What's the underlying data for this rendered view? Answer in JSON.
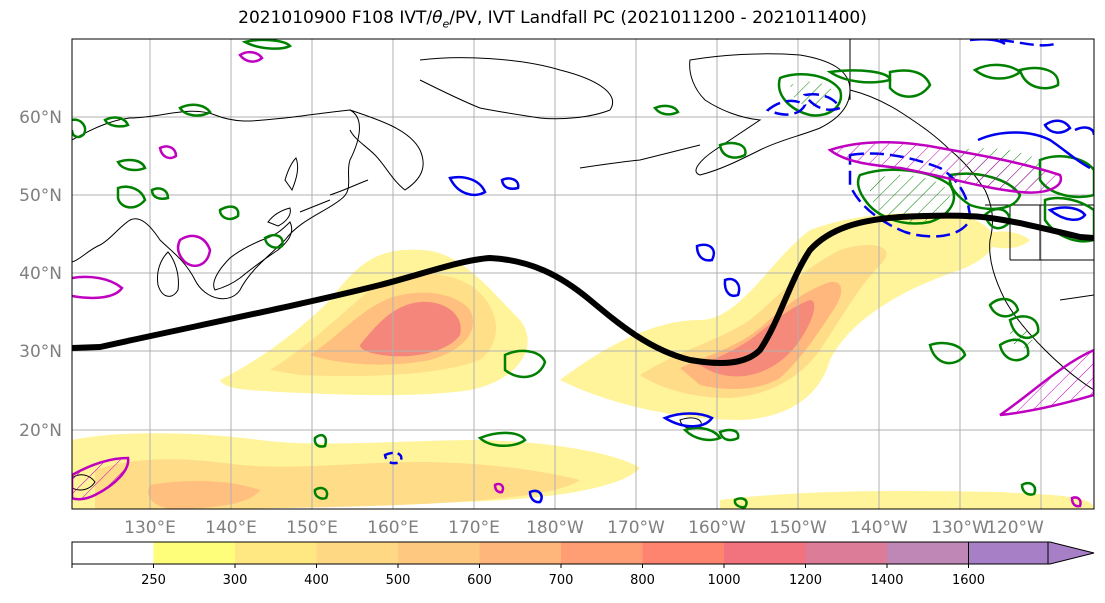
{
  "title": {
    "prefix": "2021010900 F108 IVT/",
    "theta": "θ",
    "theta_sub": "e",
    "suffix": "/PV, IVT Landfall PC (2021011200 - 2021011400)"
  },
  "lat_labels": [
    "60°N",
    "50°N",
    "40°N",
    "30°N",
    "20°N"
  ],
  "lat_values": [
    60,
    50,
    40,
    30,
    20
  ],
  "lon_labels": [
    "130°E",
    "140°E",
    "150°E",
    "160°E",
    "170°E",
    "180°W",
    "170°W",
    "160°W",
    "150°W",
    "140°W",
    "130°W",
    "120°W"
  ],
  "colorbar": {
    "levels": [
      "250",
      "300",
      "400",
      "500",
      "600",
      "700",
      "800",
      "1000",
      "1200",
      "1400",
      "1600"
    ],
    "colors": [
      "#ffffff",
      "#fffe7a",
      "#ffe781",
      "#ffd883",
      "#ffc881",
      "#ffb67b",
      "#ff9d74",
      "#ff8470",
      "#f2727e",
      "#dc7c99",
      "#bf87b5",
      "#a77fc7"
    ]
  },
  "colors": {
    "ivt_outer": "#fff8a8",
    "ivt_mid": "#ffd98a",
    "ivt_core": "#f47f7c",
    "landfall_line": "#000000",
    "theta_contour": "#008000",
    "pv_contour": "#0000ee",
    "mag_contour": "#c000c0",
    "coast": "#000000",
    "grid": "#b0b0b0"
  }
}
